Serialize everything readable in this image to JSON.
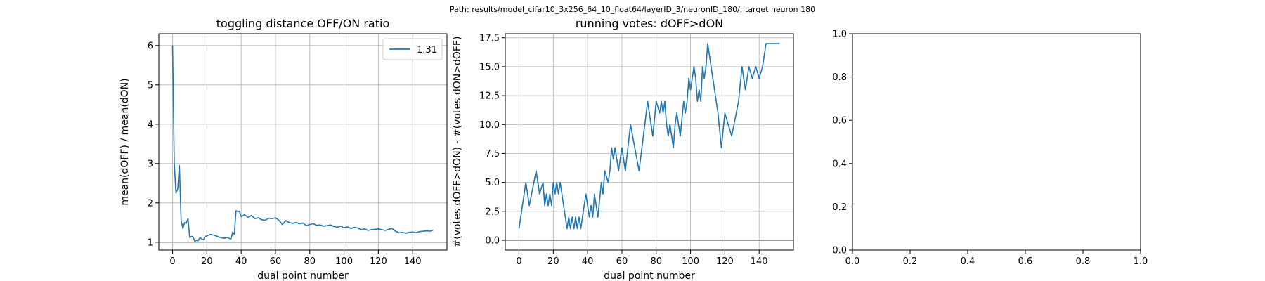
{
  "suptitle": "Path: results/model_cifar10_3x256_64_10_float64/layerID_3/neuronID_180/; target neuron 180",
  "colors": {
    "series": "#1f77b4",
    "grid": "#b0b0b0",
    "refline": "#808080",
    "axis": "#000000"
  },
  "chart_data": [
    {
      "type": "line",
      "title": "toggling distance OFF/ON ratio",
      "xlabel": "dual point number",
      "ylabel": "mean(dOFF) / mean(dON)",
      "xlim": [
        -8,
        160
      ],
      "ylim": [
        0.8,
        6.3
      ],
      "xticks": [
        0,
        20,
        40,
        60,
        80,
        100,
        120,
        140
      ],
      "yticks": [
        1,
        2,
        3,
        4,
        5,
        6
      ],
      "grid": true,
      "hline": 1,
      "legend": {
        "placement": "top-right",
        "entries": [
          "1.31"
        ]
      },
      "series": [
        {
          "name": "1.31",
          "x": [
            0,
            1,
            2,
            3,
            4,
            5,
            6,
            7,
            8,
            9,
            10,
            11,
            12,
            13,
            14,
            15,
            16,
            17,
            18,
            19,
            20,
            22,
            24,
            26,
            28,
            30,
            32,
            34,
            35,
            36,
            37,
            38,
            39,
            40,
            42,
            44,
            46,
            48,
            50,
            52,
            54,
            56,
            58,
            60,
            62,
            64,
            66,
            68,
            70,
            72,
            74,
            76,
            78,
            80,
            82,
            84,
            86,
            88,
            90,
            92,
            94,
            96,
            98,
            100,
            102,
            104,
            106,
            108,
            110,
            112,
            114,
            116,
            118,
            120,
            122,
            124,
            126,
            128,
            130,
            132,
            134,
            136,
            138,
            140,
            142,
            144,
            146,
            148,
            150,
            152
          ],
          "y": [
            6.0,
            3.0,
            2.25,
            2.35,
            2.95,
            1.55,
            1.35,
            1.5,
            1.48,
            1.6,
            1.12,
            1.15,
            1.13,
            1.02,
            1.05,
            1.04,
            1.12,
            1.08,
            1.06,
            1.15,
            1.16,
            1.2,
            1.18,
            1.15,
            1.12,
            1.1,
            1.12,
            1.08,
            1.25,
            1.2,
            1.8,
            1.78,
            1.79,
            1.65,
            1.7,
            1.63,
            1.68,
            1.6,
            1.62,
            1.57,
            1.56,
            1.61,
            1.6,
            1.62,
            1.56,
            1.45,
            1.55,
            1.5,
            1.48,
            1.5,
            1.47,
            1.49,
            1.42,
            1.45,
            1.47,
            1.43,
            1.44,
            1.41,
            1.42,
            1.44,
            1.4,
            1.38,
            1.41,
            1.37,
            1.39,
            1.35,
            1.38,
            1.36,
            1.32,
            1.34,
            1.3,
            1.32,
            1.33,
            1.34,
            1.32,
            1.3,
            1.33,
            1.35,
            1.28,
            1.24,
            1.25,
            1.23,
            1.25,
            1.26,
            1.24,
            1.27,
            1.28,
            1.29,
            1.28,
            1.31
          ]
        }
      ]
    },
    {
      "type": "line",
      "title": "running votes: dOFF>dON",
      "xlabel": "dual point number",
      "ylabel": "#(votes dOFF>dON) - #(votes dON>dOFF)",
      "xlim": [
        -8,
        160
      ],
      "ylim": [
        -0.85,
        17.85
      ],
      "xticks": [
        0,
        20,
        40,
        60,
        80,
        100,
        120,
        140
      ],
      "yticks": [
        0.0,
        2.5,
        5.0,
        7.5,
        10.0,
        12.5,
        15.0,
        17.5
      ],
      "ytick_labels": [
        "0.0",
        "2.5",
        "5.0",
        "7.5",
        "10.0",
        "12.5",
        "15.0",
        "17.5"
      ],
      "grid": true,
      "hline": 0,
      "series": [
        {
          "x": [
            0,
            4,
            6,
            10,
            12,
            14,
            15,
            16,
            17,
            18,
            19,
            20,
            21,
            22,
            23,
            24,
            25,
            26,
            27,
            28,
            29,
            30,
            31,
            32,
            33,
            34,
            35,
            36,
            37,
            38,
            39,
            40,
            41,
            42,
            43,
            44,
            45,
            46,
            48,
            49,
            50,
            52,
            53,
            54,
            55,
            56,
            58,
            59,
            60,
            62,
            65,
            70,
            75,
            78,
            80,
            82,
            83,
            84,
            85,
            86,
            87,
            88,
            89,
            90,
            91,
            92,
            93,
            94,
            96,
            97,
            98,
            99,
            100,
            102,
            103,
            104,
            105,
            106,
            107,
            108,
            109,
            110,
            111,
            112,
            113,
            114,
            115,
            116,
            118,
            120,
            124,
            128,
            130,
            132,
            134,
            136,
            138,
            140,
            142,
            144,
            146,
            147,
            148,
            149,
            150,
            152
          ],
          "y": [
            1,
            5,
            3,
            6,
            4,
            5,
            3,
            4,
            3,
            4,
            3,
            5,
            4,
            5,
            4,
            5,
            4,
            3,
            2,
            1,
            2,
            1,
            2,
            1,
            2,
            1,
            2,
            1,
            2,
            3,
            4,
            3,
            2,
            3,
            2,
            4,
            3,
            2,
            5,
            4,
            6,
            5,
            6,
            8,
            7,
            8,
            6,
            7,
            8,
            6,
            10,
            6,
            12,
            9,
            12,
            11,
            12,
            11,
            12,
            10,
            9,
            10,
            9,
            8,
            10,
            11,
            10,
            9,
            12,
            11,
            12,
            14,
            13,
            15,
            14,
            12,
            13,
            12,
            15,
            14,
            15,
            17,
            16,
            15,
            14,
            13,
            12,
            11,
            8,
            11,
            9,
            12,
            15,
            13,
            15,
            14,
            15,
            14,
            15,
            17,
            17,
            17,
            17,
            17,
            17,
            17
          ]
        }
      ]
    },
    {
      "type": "line",
      "title": "",
      "xlabel": "",
      "ylabel": "",
      "xlim": [
        0,
        1
      ],
      "ylim": [
        0,
        1
      ],
      "xticks": [
        0.0,
        0.2,
        0.4,
        0.6,
        0.8,
        1.0
      ],
      "yticks": [
        0.0,
        0.2,
        0.4,
        0.6,
        0.8,
        1.0
      ],
      "xtick_labels": [
        "0.0",
        "0.2",
        "0.4",
        "0.6",
        "0.8",
        "1.0"
      ],
      "ytick_labels": [
        "0.0",
        "0.2",
        "0.4",
        "0.6",
        "0.8",
        "1.0"
      ],
      "grid": false,
      "series": []
    }
  ]
}
